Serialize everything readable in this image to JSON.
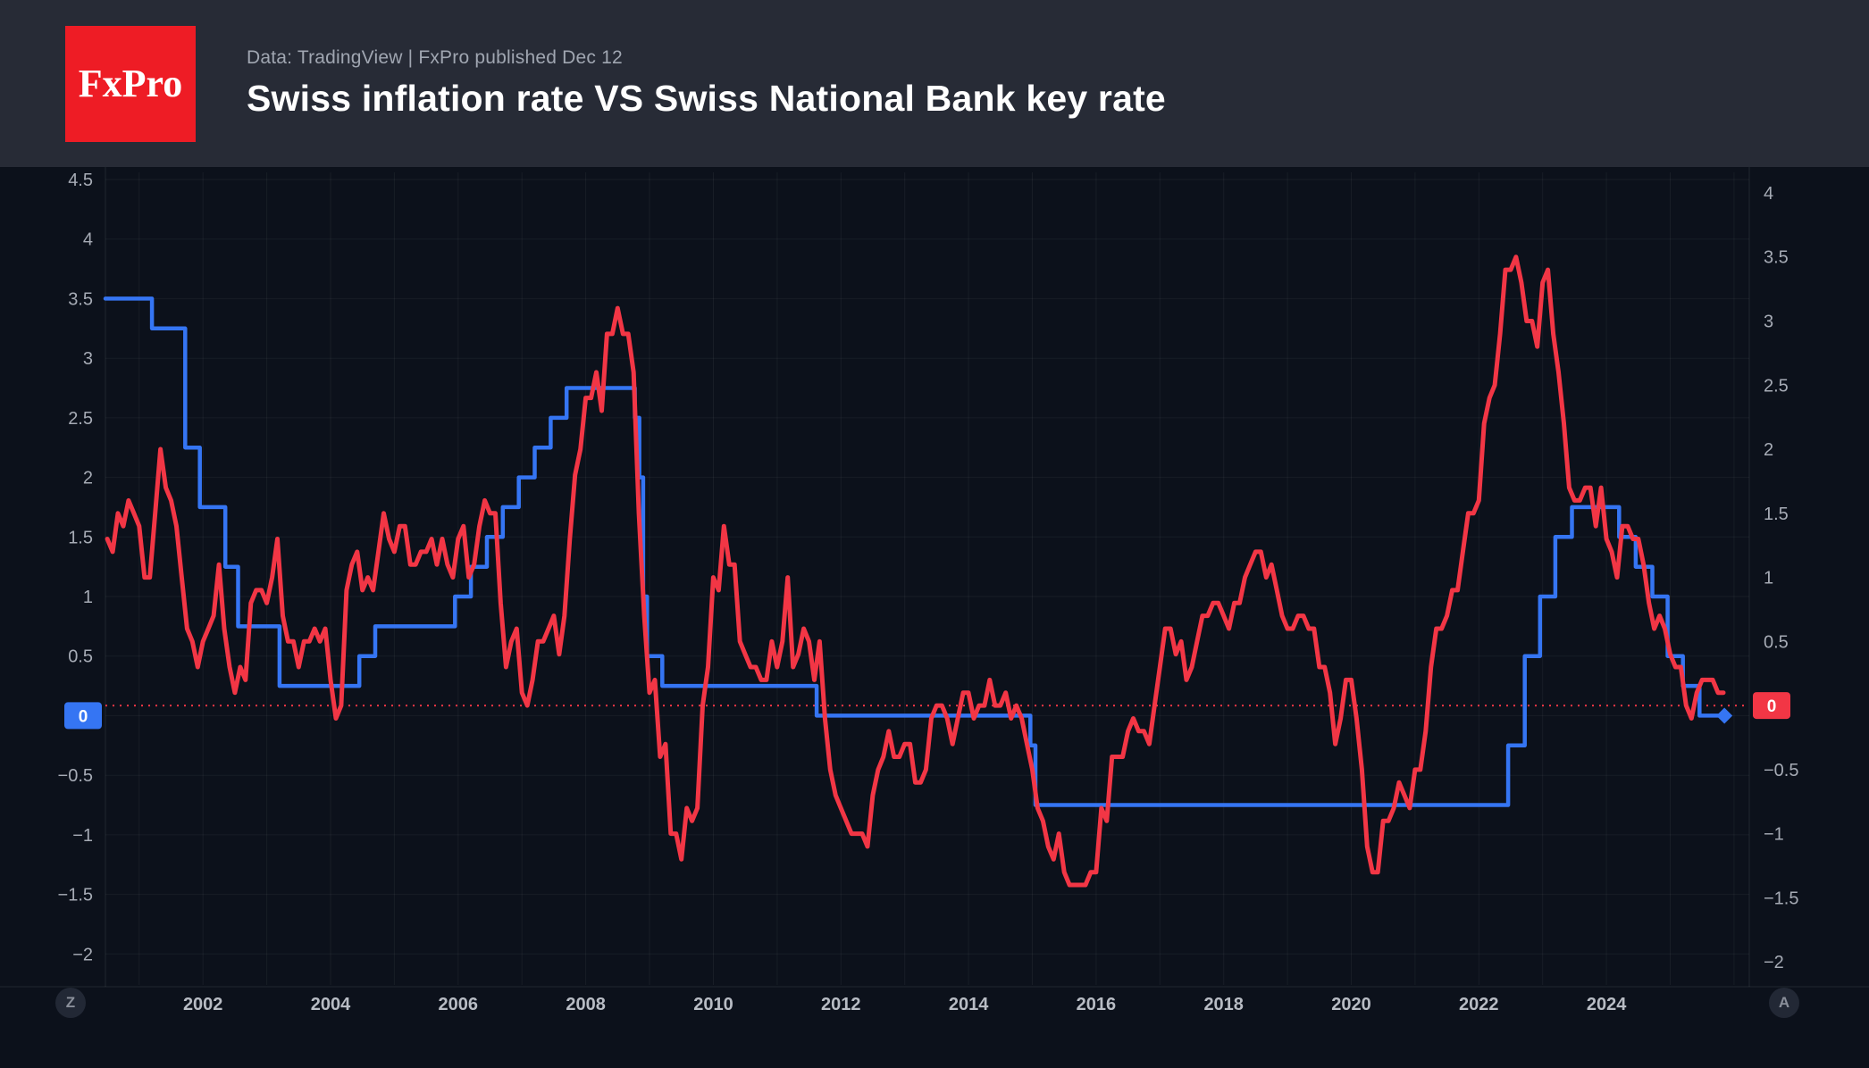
{
  "header": {
    "logo_text": "FxPro",
    "source_line": "Data: TradingView | FxPro published Dec 12",
    "title": "Swiss inflation rate VS Swiss National Bank key rate"
  },
  "footer": {
    "left_badge": "Z",
    "right_badge": "A"
  },
  "colors": {
    "background": "#0c111b",
    "header_bg": "#272b36",
    "logo_bg": "#ee1c25",
    "blue": "#3575f3",
    "red": "#f23645",
    "tick_text": "#a6abb5",
    "x_tick_text": "#b8bcc4",
    "grid": "rgba(255,255,255,0.05)",
    "axis_line": "rgba(255,255,255,0.09)"
  },
  "chart_data": {
    "type": "line",
    "title": "Swiss inflation rate VS Swiss National Bank key rate",
    "xlabel": "",
    "ylabel": "",
    "legend": "none",
    "grid": "on",
    "x_axis": {
      "min": 2000.47,
      "max": 2026.24,
      "ticks": [
        2002,
        2004,
        2006,
        2008,
        2010,
        2012,
        2014,
        2016,
        2018,
        2020,
        2022,
        2024
      ]
    },
    "left_axis": {
      "top": 4.56,
      "bottom": -2.26,
      "ticks": [
        4.5,
        4,
        3.5,
        3,
        2.5,
        2,
        1.5,
        1,
        0.5,
        0,
        -0.5,
        -1,
        -1.5,
        -2
      ]
    },
    "right_axis": {
      "top": 4.16,
      "bottom": -2.18,
      "ticks": [
        4,
        3.5,
        3,
        2.5,
        2,
        1.5,
        1,
        0.5,
        0,
        -0.5,
        -1,
        -1.5,
        -2
      ]
    },
    "zero_line": {
      "value": 0,
      "axis": "right",
      "style": "dotted",
      "color": "#f23645"
    },
    "badges": [
      {
        "axis": "left",
        "value": 0,
        "label": "0",
        "color": "#3575f3"
      },
      {
        "axis": "right",
        "value": 0,
        "label": "0",
        "color": "#f23645"
      }
    ],
    "series": [
      {
        "name": "Swiss National Bank key rate",
        "color": "#3575f3",
        "axis": "left",
        "mode": "step",
        "end_marker": "diamond",
        "points": [
          [
            2000.47,
            3.5
          ],
          [
            2001.2,
            3.25
          ],
          [
            2001.72,
            2.25
          ],
          [
            2001.95,
            1.75
          ],
          [
            2002.35,
            1.25
          ],
          [
            2002.55,
            0.75
          ],
          [
            2003.2,
            0.25
          ],
          [
            2004.45,
            0.5
          ],
          [
            2004.7,
            0.75
          ],
          [
            2005.95,
            1.0
          ],
          [
            2006.2,
            1.25
          ],
          [
            2006.45,
            1.5
          ],
          [
            2006.7,
            1.75
          ],
          [
            2006.95,
            2.0
          ],
          [
            2007.2,
            2.25
          ],
          [
            2007.45,
            2.5
          ],
          [
            2007.7,
            2.75
          ],
          [
            2008.77,
            2.5
          ],
          [
            2008.84,
            2.0
          ],
          [
            2008.9,
            1.0
          ],
          [
            2008.96,
            0.5
          ],
          [
            2009.2,
            0.25
          ],
          [
            2011.62,
            0.0
          ],
          [
            2014.97,
            -0.25
          ],
          [
            2015.05,
            -0.75
          ],
          [
            2022.46,
            -0.25
          ],
          [
            2022.72,
            0.5
          ],
          [
            2022.96,
            1.0
          ],
          [
            2023.2,
            1.5
          ],
          [
            2023.46,
            1.75
          ],
          [
            2024.2,
            1.5
          ],
          [
            2024.46,
            1.25
          ],
          [
            2024.72,
            1.0
          ],
          [
            2024.96,
            0.5
          ],
          [
            2025.2,
            0.25
          ],
          [
            2025.46,
            0.0
          ],
          [
            2025.85,
            0.0
          ]
        ]
      },
      {
        "name": "Swiss inflation rate",
        "color": "#f23645",
        "axis": "right",
        "mode": "line",
        "x_start": 2000.5,
        "x_step": 0.083333,
        "values": [
          1.3,
          1.2,
          1.5,
          1.4,
          1.6,
          1.5,
          1.4,
          1.0,
          1.0,
          1.5,
          2.0,
          1.7,
          1.6,
          1.4,
          1.0,
          0.6,
          0.5,
          0.3,
          0.5,
          0.6,
          0.7,
          1.1,
          0.6,
          0.3,
          0.1,
          0.3,
          0.2,
          0.8,
          0.9,
          0.9,
          0.8,
          1.0,
          1.3,
          0.7,
          0.5,
          0.5,
          0.3,
          0.5,
          0.5,
          0.6,
          0.5,
          0.6,
          0.2,
          -0.1,
          0.0,
          0.9,
          1.1,
          1.2,
          0.9,
          1.0,
          0.9,
          1.2,
          1.5,
          1.3,
          1.2,
          1.4,
          1.4,
          1.1,
          1.1,
          1.2,
          1.2,
          1.3,
          1.1,
          1.3,
          1.1,
          1.0,
          1.3,
          1.4,
          1.0,
          1.1,
          1.4,
          1.6,
          1.5,
          1.5,
          0.8,
          0.3,
          0.5,
          0.6,
          0.1,
          0.0,
          0.2,
          0.5,
          0.5,
          0.6,
          0.7,
          0.4,
          0.7,
          1.3,
          1.8,
          2.0,
          2.4,
          2.4,
          2.6,
          2.3,
          2.9,
          2.9,
          3.1,
          2.9,
          2.9,
          2.6,
          1.5,
          0.7,
          0.1,
          0.2,
          -0.4,
          -0.3,
          -1.0,
          -1.0,
          -1.2,
          -0.8,
          -0.9,
          -0.8,
          0.0,
          0.3,
          1.0,
          0.9,
          1.4,
          1.1,
          1.1,
          0.5,
          0.4,
          0.3,
          0.3,
          0.2,
          0.2,
          0.5,
          0.3,
          0.5,
          1.0,
          0.3,
          0.4,
          0.6,
          0.5,
          0.2,
          0.5,
          -0.1,
          -0.5,
          -0.7,
          -0.8,
          -0.9,
          -1.0,
          -1.0,
          -1.0,
          -1.1,
          -0.7,
          -0.5,
          -0.4,
          -0.2,
          -0.4,
          -0.4,
          -0.3,
          -0.3,
          -0.6,
          -0.6,
          -0.5,
          -0.1,
          0.0,
          0.0,
          -0.1,
          -0.3,
          -0.1,
          0.1,
          0.1,
          -0.1,
          0.0,
          0.0,
          0.2,
          0.0,
          0.0,
          0.1,
          -0.1,
          0.0,
          -0.1,
          -0.3,
          -0.5,
          -0.8,
          -0.9,
          -1.1,
          -1.2,
          -1.0,
          -1.3,
          -1.4,
          -1.4,
          -1.4,
          -1.4,
          -1.3,
          -1.3,
          -0.8,
          -0.9,
          -0.4,
          -0.4,
          -0.4,
          -0.2,
          -0.1,
          -0.2,
          -0.2,
          -0.3,
          0.0,
          0.3,
          0.6,
          0.6,
          0.4,
          0.5,
          0.2,
          0.3,
          0.5,
          0.7,
          0.7,
          0.8,
          0.8,
          0.7,
          0.6,
          0.8,
          0.8,
          1.0,
          1.1,
          1.2,
          1.2,
          1.0,
          1.1,
          0.9,
          0.7,
          0.6,
          0.6,
          0.7,
          0.7,
          0.6,
          0.6,
          0.3,
          0.3,
          0.1,
          -0.3,
          -0.1,
          0.2,
          0.2,
          -0.1,
          -0.5,
          -1.1,
          -1.3,
          -1.3,
          -0.9,
          -0.9,
          -0.8,
          -0.6,
          -0.7,
          -0.8,
          -0.5,
          -0.5,
          -0.2,
          0.3,
          0.6,
          0.6,
          0.7,
          0.9,
          0.9,
          1.2,
          1.5,
          1.5,
          1.6,
          2.2,
          2.4,
          2.5,
          2.9,
          3.4,
          3.4,
          3.5,
          3.3,
          3.0,
          3.0,
          2.8,
          3.3,
          3.4,
          2.9,
          2.6,
          2.2,
          1.7,
          1.6,
          1.6,
          1.7,
          1.7,
          1.4,
          1.7,
          1.3,
          1.2,
          1.0,
          1.4,
          1.4,
          1.3,
          1.3,
          1.1,
          0.8,
          0.6,
          0.7,
          0.6,
          0.4,
          0.3,
          0.3,
          0.0,
          -0.1,
          0.1,
          0.2,
          0.2,
          0.2,
          0.1,
          0.1
        ]
      }
    ]
  }
}
